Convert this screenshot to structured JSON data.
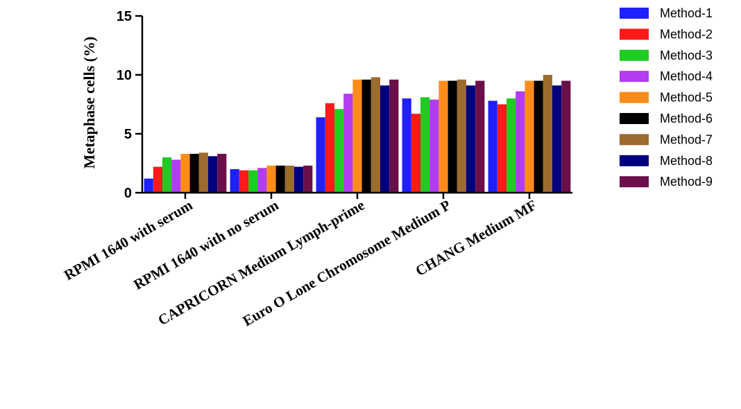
{
  "chart_data": {
    "type": "bar",
    "title": "",
    "xlabel": "",
    "ylabel": "Metaphase cells (%)",
    "ylim": [
      0,
      15
    ],
    "yticks": [
      0,
      5,
      10,
      15
    ],
    "grid": false,
    "legend_position": "top-right",
    "categories": [
      "RPMI 1640 with serum",
      "RPMI 1640 with no serum",
      "CAPRICORN Medium Lymph-prime",
      "Euro O Lone Chromosome Medium P",
      "CHANG Medium MF"
    ],
    "series": [
      {
        "name": "Method-1",
        "color": "#1f1fff",
        "values": [
          1.2,
          2.0,
          6.4,
          8.0,
          7.8
        ]
      },
      {
        "name": "Method-2",
        "color": "#ff1a1a",
        "values": [
          2.2,
          1.9,
          7.6,
          6.7,
          7.5
        ]
      },
      {
        "name": "Method-3",
        "color": "#1fcc1f",
        "values": [
          3.0,
          1.9,
          7.1,
          8.1,
          8.0
        ]
      },
      {
        "name": "Method-4",
        "color": "#b13cf0",
        "values": [
          2.8,
          2.1,
          8.4,
          7.9,
          8.6
        ]
      },
      {
        "name": "Method-5",
        "color": "#ff8c1a",
        "values": [
          3.3,
          2.3,
          9.6,
          9.5,
          9.5
        ]
      },
      {
        "name": "Method-6",
        "color": "#000000",
        "values": [
          3.3,
          2.3,
          9.6,
          9.5,
          9.5
        ]
      },
      {
        "name": "Method-7",
        "color": "#9c6b2e",
        "values": [
          3.4,
          2.3,
          9.8,
          9.6,
          10.0
        ]
      },
      {
        "name": "Method-8",
        "color": "#000080",
        "values": [
          3.1,
          2.2,
          9.1,
          9.1,
          9.1
        ]
      },
      {
        "name": "Method-9",
        "color": "#6b0f4a",
        "values": [
          3.3,
          2.3,
          9.6,
          9.5,
          9.5
        ]
      }
    ]
  }
}
